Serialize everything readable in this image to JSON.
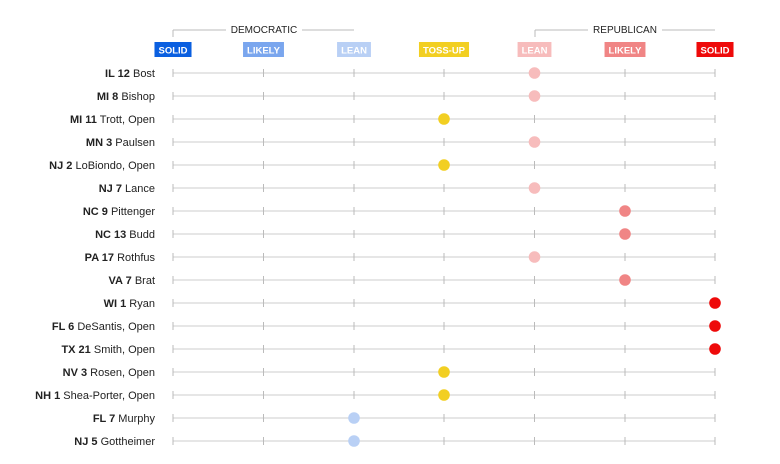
{
  "chart_data": {
    "type": "scatter",
    "headers": {
      "democratic": "DEMOCRATIC",
      "republican": "REPUBLICAN"
    },
    "categories": [
      {
        "label": "SOLID",
        "color": "#0a5fe0"
      },
      {
        "label": "LIKELY",
        "color": "#7aa6ee"
      },
      {
        "label": "LEAN",
        "color": "#b9d0f5"
      },
      {
        "label": "TOSS-UP",
        "color": "#f2cf22"
      },
      {
        "label": "LEAN",
        "color": "#f7bcbc"
      },
      {
        "label": "LIKELY",
        "color": "#f08585"
      },
      {
        "label": "SOLID",
        "color": "#ee0a0a"
      }
    ],
    "races": [
      {
        "district": "IL 12",
        "candidate": "Bost",
        "rating": 4
      },
      {
        "district": "MI 8",
        "candidate": "Bishop",
        "rating": 4
      },
      {
        "district": "MI 11",
        "candidate": "Trott, Open",
        "rating": 3
      },
      {
        "district": "MN 3",
        "candidate": "Paulsen",
        "rating": 4
      },
      {
        "district": "NJ 2",
        "candidate": "LoBiondo, Open",
        "rating": 3
      },
      {
        "district": "NJ 7",
        "candidate": "Lance",
        "rating": 4
      },
      {
        "district": "NC 9",
        "candidate": "Pittenger",
        "rating": 5
      },
      {
        "district": "NC 13",
        "candidate": "Budd",
        "rating": 5
      },
      {
        "district": "PA 17",
        "candidate": "Rothfus",
        "rating": 4
      },
      {
        "district": "VA 7",
        "candidate": "Brat",
        "rating": 5
      },
      {
        "district": "WI 1",
        "candidate": "Ryan",
        "rating": 6
      },
      {
        "district": "FL 6",
        "candidate": "DeSantis, Open",
        "rating": 6
      },
      {
        "district": "TX 21",
        "candidate": "Smith, Open",
        "rating": 6
      },
      {
        "district": "NV 3",
        "candidate": "Rosen, Open",
        "rating": 3
      },
      {
        "district": "NH 1",
        "candidate": "Shea-Porter, Open",
        "rating": 3
      },
      {
        "district": "FL 7",
        "candidate": "Murphy",
        "rating": 2
      },
      {
        "district": "NJ 5",
        "candidate": "Gottheimer",
        "rating": 2
      }
    ]
  }
}
